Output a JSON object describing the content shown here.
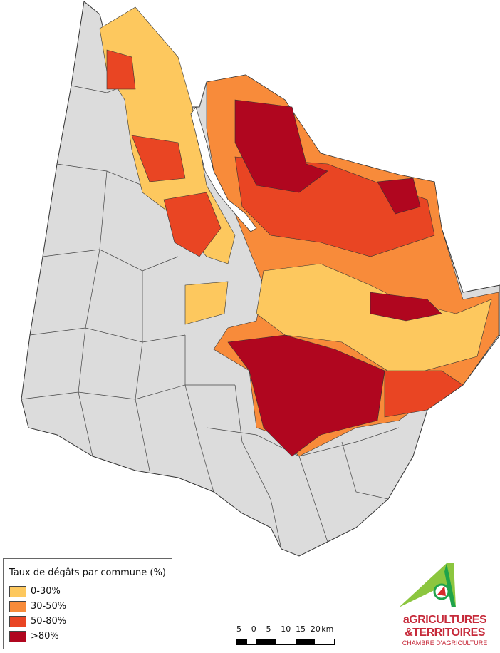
{
  "legend": {
    "title": "Taux de dégâts par commune (%)",
    "items": [
      {
        "label": "0-30%",
        "color": "#fdc85e"
      },
      {
        "label": "30-50%",
        "color": "#f88b3a"
      },
      {
        "label": "50-80%",
        "color": "#e94523"
      },
      {
        "label": ">80%",
        "color": "#b0061f"
      }
    ],
    "no_data_color": "#dcdcdc"
  },
  "scale_bar": {
    "labels": [
      "5",
      "0",
      "5",
      "10",
      "15",
      "20",
      "km"
    ]
  },
  "logo": {
    "line1": "aGRICULTURES",
    "line2": "&TERRITOIRES",
    "line3": "CHAMBRE D'AGRICULTURE"
  }
}
